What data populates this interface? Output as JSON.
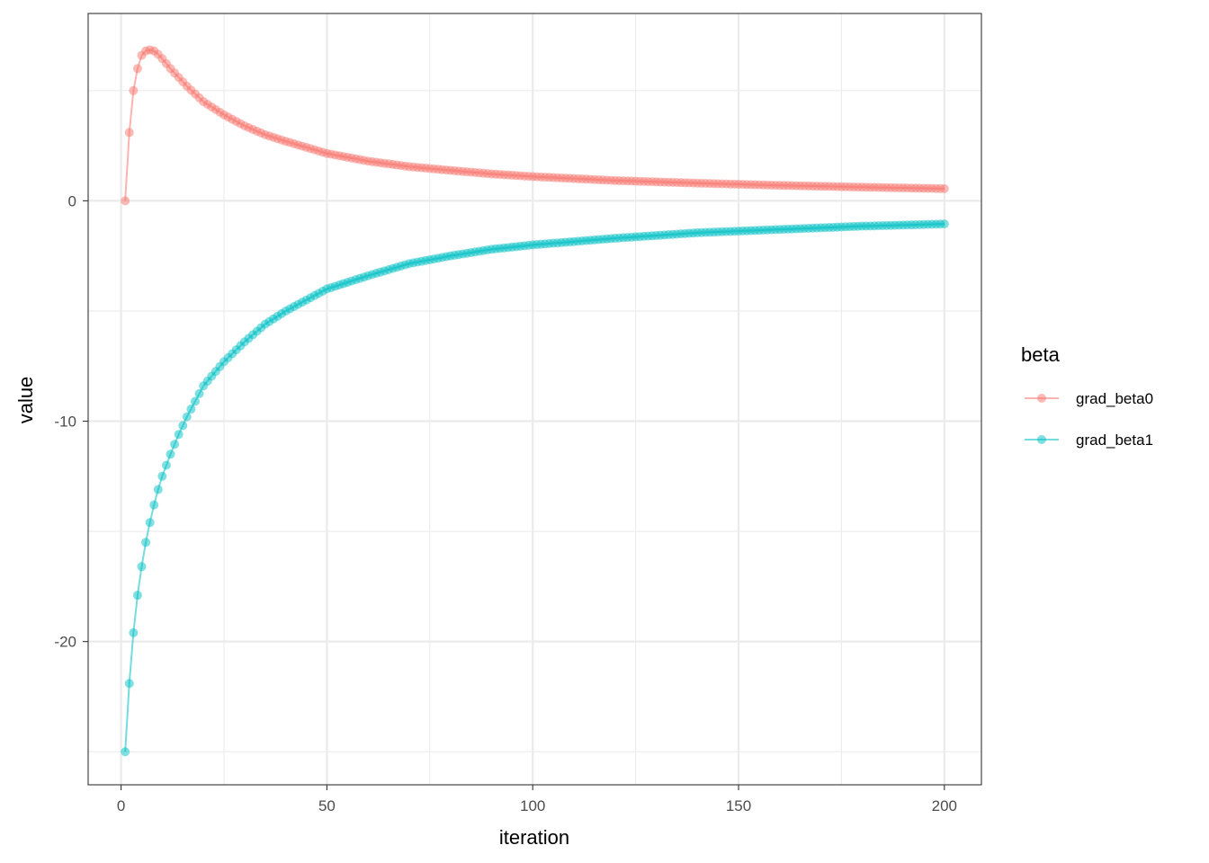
{
  "chart_data": {
    "type": "line",
    "xlabel": "iteration",
    "ylabel": "value",
    "xlim": [
      -8,
      209
    ],
    "ylim": [
      -26.5,
      8.5
    ],
    "xticks": [
      0,
      50,
      100,
      150,
      200
    ],
    "yticks": [
      -20,
      -10,
      0
    ],
    "xtick_labels": [
      "0",
      "50",
      "100",
      "150",
      "200"
    ],
    "ytick_labels": [
      "-20",
      "-10",
      "0"
    ],
    "grid": true,
    "markers": true,
    "legend": {
      "title": "beta",
      "position": "right"
    },
    "series": [
      {
        "name": "grad_beta0",
        "color": "#F8766D",
        "x": [
          1,
          2,
          3,
          4,
          5,
          6,
          7,
          8,
          9,
          10,
          12,
          14,
          16,
          18,
          20,
          25,
          30,
          35,
          40,
          50,
          60,
          70,
          80,
          90,
          100,
          120,
          140,
          160,
          180,
          200
        ],
        "values": [
          0,
          3.1,
          5.0,
          6.0,
          6.6,
          6.8,
          6.85,
          6.8,
          6.65,
          6.45,
          6.0,
          5.6,
          5.2,
          4.85,
          4.5,
          3.9,
          3.4,
          3.0,
          2.7,
          2.15,
          1.8,
          1.55,
          1.38,
          1.22,
          1.1,
          0.92,
          0.8,
          0.7,
          0.62,
          0.55
        ]
      },
      {
        "name": "grad_beta1",
        "color": "#00BFC4",
        "x": [
          1,
          2,
          3,
          4,
          5,
          6,
          7,
          8,
          9,
          10,
          12,
          14,
          16,
          18,
          20,
          25,
          30,
          35,
          40,
          50,
          60,
          70,
          80,
          90,
          100,
          120,
          140,
          160,
          180,
          200
        ],
        "values": [
          -25,
          -21.9,
          -19.6,
          -17.9,
          -16.6,
          -15.5,
          -14.6,
          -13.8,
          -13.1,
          -12.5,
          -11.5,
          -10.6,
          -9.8,
          -9.1,
          -8.4,
          -7.3,
          -6.4,
          -5.6,
          -5.0,
          -4.0,
          -3.4,
          -2.85,
          -2.5,
          -2.2,
          -2.0,
          -1.7,
          -1.45,
          -1.3,
          -1.15,
          -1.05
        ]
      }
    ]
  }
}
